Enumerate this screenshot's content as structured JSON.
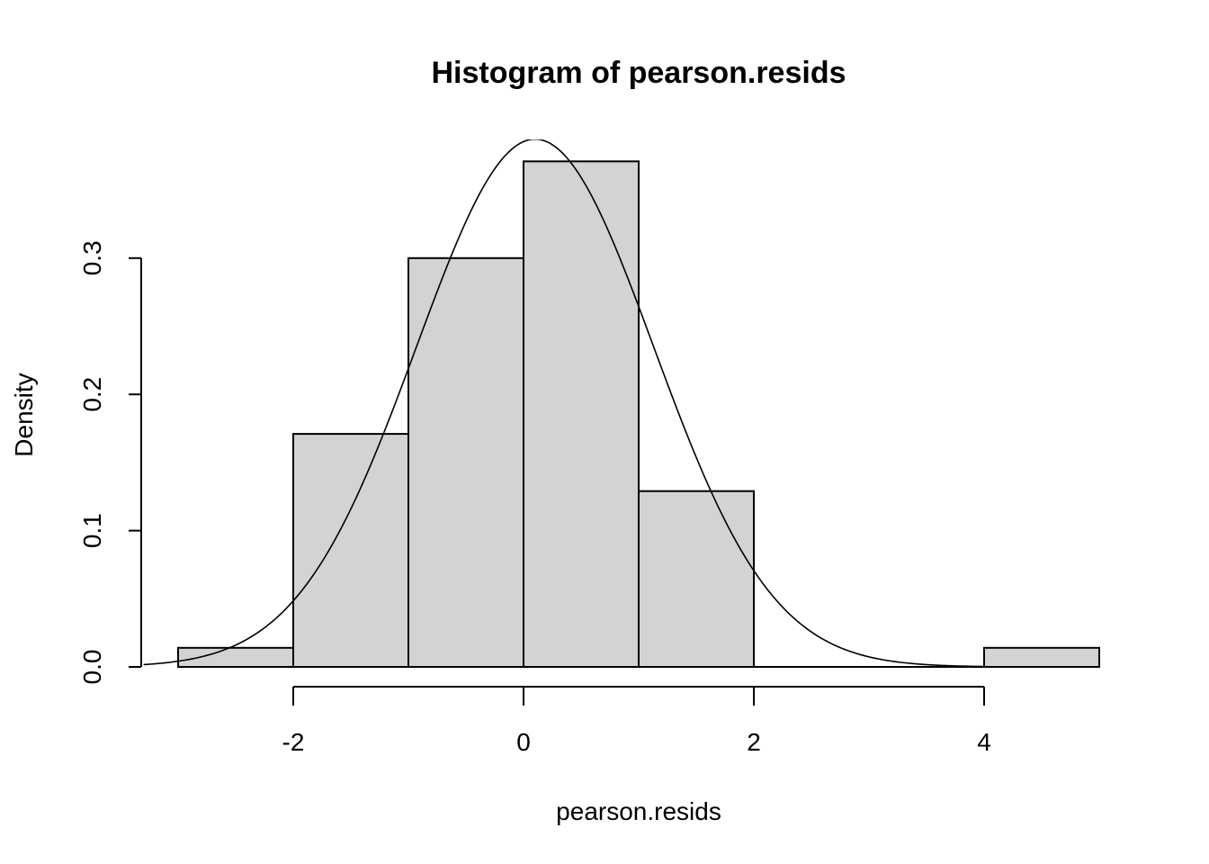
{
  "chart_data": {
    "type": "bar",
    "title": "Histogram of pearson.resids",
    "xlabel": "pearson.resids",
    "ylabel": "Density",
    "bins": [
      {
        "from": -3,
        "to": -2,
        "density": 0.014
      },
      {
        "from": -2,
        "to": -1,
        "density": 0.171
      },
      {
        "from": -1,
        "to": 0,
        "density": 0.3
      },
      {
        "from": 0,
        "to": 1,
        "density": 0.371
      },
      {
        "from": 1,
        "to": 2,
        "density": 0.129
      },
      {
        "from": 2,
        "to": 3,
        "density": 0.0
      },
      {
        "from": 3,
        "to": 4,
        "density": 0.0
      },
      {
        "from": 4,
        "to": 5,
        "density": 0.014
      }
    ],
    "x_ticks": [
      -2,
      0,
      2,
      4
    ],
    "y_ticks": [
      "0.0",
      "0.1",
      "0.2",
      "0.3"
    ],
    "y_tick_values": [
      0.0,
      0.1,
      0.2,
      0.3
    ],
    "xlim": [
      -3.3,
      5.3
    ],
    "ylim": [
      0,
      0.386
    ],
    "curve": {
      "type": "normal density",
      "mean": 0.1,
      "sd": 1.03,
      "x_range": [
        -3.3,
        4.0
      ]
    },
    "bar_color": "#d3d3d3",
    "grid": false
  }
}
